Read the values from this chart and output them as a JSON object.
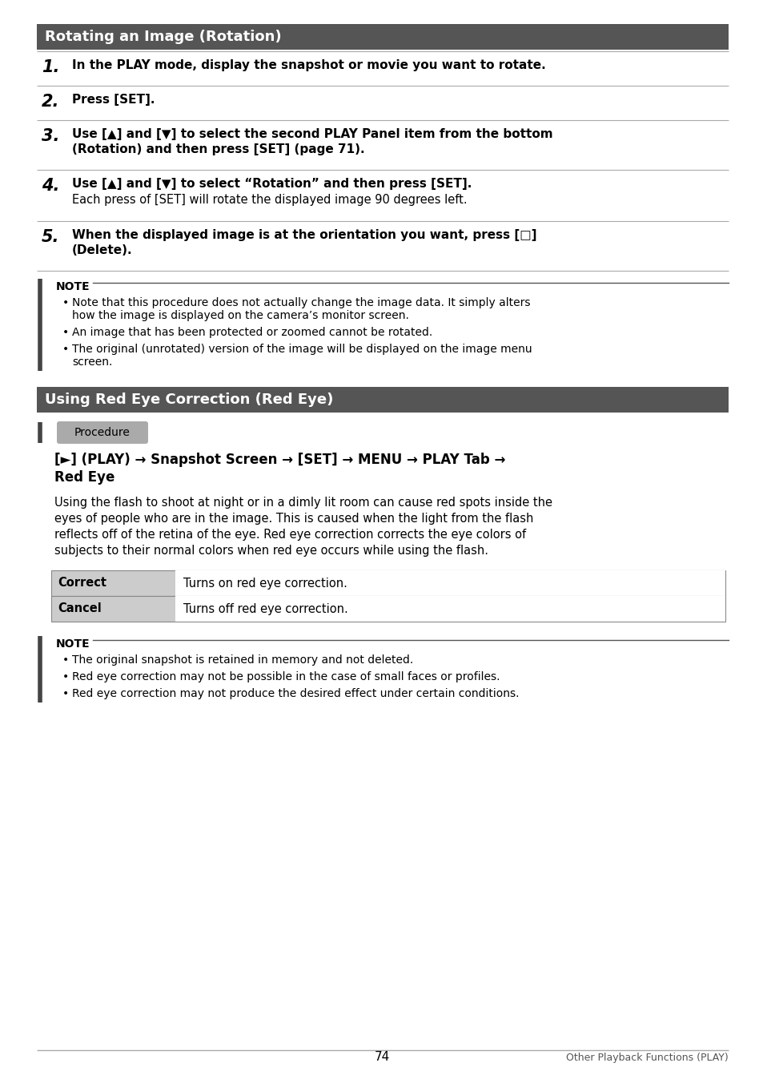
{
  "page_bg": "#ffffff",
  "header_bg": "#555555",
  "header_text_color": "#ffffff",
  "table_border_color": "#888888",
  "note_bar_color": "#444444",
  "body_text_color": "#000000",
  "section1_title": "Rotating an Image (Rotation)",
  "section2_title": "Using Red Eye Correction (Red Eye)",
  "note1_items": [
    "Note that this procedure does not actually change the image data. It simply alters\nhow the image is displayed on the camera’s monitor screen.",
    "An image that has been protected or zoomed cannot be rotated.",
    "The original (unrotated) version of the image will be displayed on the image menu\nscreen."
  ],
  "procedure_label": "Procedure",
  "pathway_line1": "[►] (PLAY) → Snapshot Screen → [SET] → MENU → PLAY Tab →",
  "pathway_line2": "Red Eye",
  "desc_lines": [
    "Using the flash to shoot at night or in a dimly lit room can cause red spots inside the",
    "eyes of people who are in the image. This is caused when the light from the flash",
    "reflects off of the retina of the eye. Red eye correction corrects the eye colors of",
    "subjects to their normal colors when red eye occurs while using the flash."
  ],
  "table_rows": [
    {
      "key": "Correct",
      "value": "Turns on red eye correction."
    },
    {
      "key": "Cancel",
      "value": "Turns off red eye correction."
    }
  ],
  "note2_items": [
    "The original snapshot is retained in memory and not deleted.",
    "Red eye correction may not be possible in the case of small faces or profiles.",
    "Red eye correction may not produce the desired effect under certain conditions."
  ],
  "page_number": "74",
  "footer_right": "Other Playback Functions (PLAY)"
}
